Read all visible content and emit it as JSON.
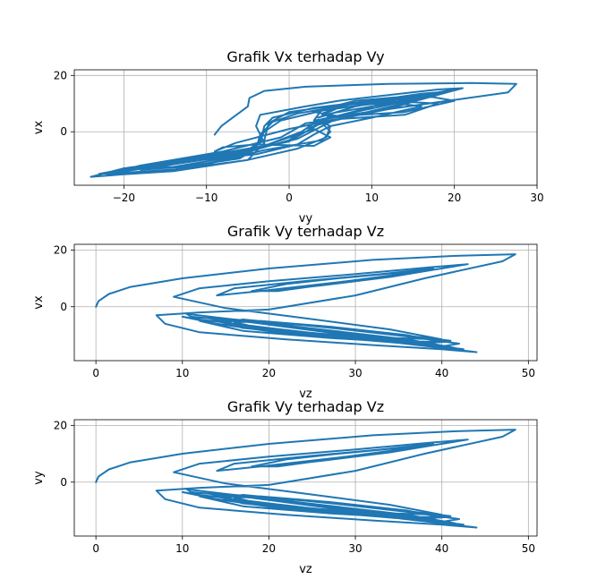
{
  "figure": {
    "background": "#ffffff"
  },
  "chart_data": [
    {
      "type": "line",
      "title": "Grafik Vx terhadap Vy",
      "xlabel": "vy",
      "ylabel": "vx",
      "xlim": [
        -26,
        30
      ],
      "ylim": [
        -19,
        22
      ],
      "xticks": [
        -20,
        -10,
        0,
        10,
        20,
        30
      ],
      "yticks": [
        0,
        20
      ],
      "grid": true,
      "color": "#1f77b4",
      "x": [
        -9.0,
        -8.2,
        -5.0,
        -4.8,
        -3.0,
        2.0,
        12.0,
        22.0,
        27.5,
        26.5,
        12.0,
        0.0,
        -6.5,
        -9.0,
        -8.0,
        -4.0,
        3.0,
        5.0,
        3.0,
        0.0,
        -3.0,
        -10.0,
        -20.0,
        -24.0,
        -15.0,
        -5.0,
        -3.0,
        -4.0,
        -3.5,
        2.0,
        6.0,
        12.0,
        18.0,
        21.0,
        16.0,
        8.0,
        3.0,
        4.0,
        8.0,
        16.0,
        20.0,
        14.0,
        6.0,
        3.0,
        5.0,
        12.0,
        18.0,
        14.0,
        6.0,
        2.0,
        -1.0,
        -8.0,
        -18.0,
        -22.0,
        -12.0,
        -3.0,
        4.0,
        5.0,
        4.0,
        2.0,
        0.0,
        -6.0,
        -16.0,
        -23.0,
        -15.0,
        -6.0,
        -3.5,
        -3.0,
        -2.0,
        3.0,
        10.0,
        16.0,
        18.0,
        12.0,
        5.0,
        3.5,
        8.0,
        14.0,
        17.0,
        12.0,
        6.0,
        4.0,
        6.0,
        12.0,
        16.0,
        10.0,
        5.0,
        3.0,
        1.0,
        -4.0,
        -14.0,
        -21.0,
        -15.0,
        -6.0,
        -3.0,
        -2.5,
        0.0,
        6.0,
        14.0,
        20.0,
        16.0,
        8.0,
        4.0,
        5.0,
        3.0,
        1.0,
        -6.0,
        -17.0,
        -22.0,
        -14.0,
        -5.0,
        1.0,
        4.5,
        5.0,
        3.5,
        1.5,
        -3.0,
        -12.0,
        -19.0,
        -14.0,
        -7.0,
        -4.0,
        -3.0,
        -1.0,
        4.0,
        10.0,
        14.0,
        9.0,
        5.0,
        4.0,
        7.0,
        13.0,
        15.0,
        10.0,
        5.5,
        3.5,
        2.0,
        0.0,
        -5.0,
        -13.0,
        -18.0,
        -13.0,
        -6.0,
        -4.0,
        -3.5,
        -2.0,
        1.0,
        5.0,
        8.0
      ],
      "y": [
        -1.0,
        2.0,
        9.0,
        12.0,
        14.5,
        16.0,
        17.0,
        17.3,
        17.0,
        14.0,
        8.0,
        1.0,
        -4.0,
        -7.0,
        -5.5,
        -4.5,
        -5.0,
        -2.0,
        1.0,
        -2.0,
        -5.0,
        -9.0,
        -13.0,
        -16.0,
        -14.0,
        -10.0,
        -4.0,
        2.0,
        6.0,
        9.0,
        11.0,
        13.0,
        15.0,
        15.5,
        11.5,
        6.0,
        4.0,
        8.0,
        11.0,
        13.0,
        11.0,
        7.0,
        5.5,
        7.0,
        9.0,
        11.0,
        10.0,
        6.0,
        4.5,
        3.0,
        -2.0,
        -7.0,
        -12.0,
        -15.0,
        -13.0,
        -6.5,
        -3.0,
        0.0,
        3.0,
        1.0,
        -3.0,
        -8.0,
        -11.0,
        -15.0,
        -14.0,
        -9.0,
        -4.0,
        2.0,
        5.0,
        8.5,
        11.0,
        13.5,
        14.0,
        10.0,
        6.5,
        5.0,
        9.0,
        12.0,
        12.5,
        8.0,
        5.5,
        6.0,
        8.5,
        10.5,
        9.0,
        5.0,
        2.0,
        -1.0,
        -4.5,
        -8.0,
        -11.0,
        -14.5,
        -12.0,
        -8.0,
        -3.0,
        3.0,
        7.0,
        9.5,
        12.0,
        15.0,
        12.0,
        7.0,
        4.5,
        3.5,
        0.5,
        -2.5,
        -7.5,
        -12.0,
        -15.5,
        -14.0,
        -10.0,
        -6.0,
        -2.0,
        2.0,
        4.0,
        0.0,
        -5.0,
        -9.5,
        -13.0,
        -12.5,
        -9.0,
        -5.0,
        0.0,
        4.0,
        7.5,
        10.0,
        12.5,
        8.0,
        5.0,
        6.5,
        9.5,
        11.5,
        11.0,
        7.0,
        4.0,
        2.5,
        0.0,
        -3.5,
        -6.5,
        -10.5,
        -13.5,
        -12.5,
        -9.5,
        -6.0,
        -1.0,
        3.5,
        6.5,
        8.5,
        10.0
      ]
    },
    {
      "type": "line",
      "title": "Grafik Vy terhadap Vz",
      "xlabel": "vz",
      "ylabel": "vx",
      "xlim": [
        -2.5,
        51
      ],
      "ylim": [
        -19,
        22
      ],
      "xticks": [
        0,
        10,
        20,
        30,
        40,
        50
      ],
      "yticks": [
        0,
        20
      ],
      "grid": true,
      "color": "#1f77b4",
      "x": [
        0.0,
        0.3,
        1.5,
        4.0,
        10.0,
        20.0,
        32.0,
        42.0,
        48.5,
        47.0,
        38.0,
        30.0,
        20.0,
        12.0,
        7.0,
        8.0,
        12.0,
        22.0,
        32.0,
        40.0,
        44.0,
        40.0,
        30.0,
        20.0,
        12.0,
        10.0,
        14.0,
        22.0,
        32.0,
        40.0,
        42.0,
        36.0,
        26.0,
        16.0,
        12.0,
        17.0,
        27.0,
        38.0,
        41.0,
        34.0,
        24.0,
        17.0,
        15.0,
        19.0,
        27.0,
        36.0,
        42.5,
        38.0,
        28.0,
        18.0,
        11.0,
        10.5,
        16.0,
        26.0,
        36.0,
        41.5,
        37.0,
        27.0,
        18.0,
        14.0,
        17.0,
        26.0,
        35.0,
        40.0,
        36.0,
        27.0,
        19.0,
        16.0,
        19.0,
        26.0,
        34.0,
        40.0,
        34.0,
        24.0,
        15.0,
        9.0,
        12.0,
        20.0,
        30.0,
        39.0,
        43.0,
        39.0,
        29.0,
        19.0,
        14.0,
        16.0,
        24.0,
        33.0,
        39.0,
        35.0,
        27.0,
        21.0,
        18.0,
        22.0,
        28.0,
        35.0,
        39.0,
        34.0,
        26.0,
        20.0
      ],
      "y": [
        0.0,
        2.0,
        4.5,
        7.0,
        10.0,
        13.5,
        16.5,
        18.0,
        18.5,
        16.0,
        10.0,
        4.0,
        -1.0,
        -2.0,
        -3.0,
        -6.0,
        -9.0,
        -11.5,
        -13.5,
        -15.0,
        -16.0,
        -14.5,
        -11.0,
        -7.5,
        -4.5,
        -3.5,
        -6.0,
        -9.5,
        -12.0,
        -14.0,
        -13.0,
        -10.5,
        -7.0,
        -4.5,
        -5.0,
        -8.5,
        -11.0,
        -13.0,
        -12.0,
        -9.5,
        -6.5,
        -4.5,
        -5.5,
        -8.0,
        -10.5,
        -12.5,
        -15.0,
        -13.5,
        -9.5,
        -5.5,
        -3.5,
        -2.5,
        -4.5,
        -8.0,
        -11.5,
        -14.5,
        -12.5,
        -8.5,
        -5.0,
        -5.0,
        -7.5,
        -10.0,
        -12.0,
        -12.5,
        -10.0,
        -7.0,
        -5.0,
        -5.5,
        -7.5,
        -9.5,
        -11.0,
        -11.5,
        -8.0,
        -4.0,
        -0.5,
        3.5,
        6.5,
        9.0,
        11.5,
        14.0,
        15.0,
        13.0,
        9.0,
        5.5,
        4.0,
        6.5,
        9.0,
        11.5,
        13.5,
        11.0,
        8.0,
        5.5,
        5.5,
        8.0,
        10.0,
        12.0,
        13.0,
        10.5,
        7.5,
        5.5
      ]
    },
    {
      "type": "line",
      "title": "Grafik Vy terhadap Vz",
      "xlabel": "vz",
      "ylabel": "vy",
      "xlim": [
        -2.5,
        51
      ],
      "ylim": [
        -19,
        22
      ],
      "xticks": [
        0,
        10,
        20,
        30,
        40,
        50
      ],
      "yticks": [
        0,
        20
      ],
      "grid": true,
      "color": "#1f77b4",
      "x": [
        0.0,
        0.3,
        1.5,
        4.0,
        10.0,
        20.0,
        32.0,
        42.0,
        48.5,
        47.0,
        38.0,
        30.0,
        20.0,
        12.0,
        7.0,
        8.0,
        12.0,
        22.0,
        32.0,
        40.0,
        44.0,
        40.0,
        30.0,
        20.0,
        12.0,
        10.0,
        14.0,
        22.0,
        32.0,
        40.0,
        42.0,
        36.0,
        26.0,
        16.0,
        12.0,
        17.0,
        27.0,
        38.0,
        41.0,
        34.0,
        24.0,
        17.0,
        15.0,
        19.0,
        27.0,
        36.0,
        42.5,
        38.0,
        28.0,
        18.0,
        11.0,
        10.5,
        16.0,
        26.0,
        36.0,
        41.5,
        37.0,
        27.0,
        18.0,
        14.0,
        17.0,
        26.0,
        35.0,
        40.0,
        36.0,
        27.0,
        19.0,
        16.0,
        19.0,
        26.0,
        34.0,
        40.0,
        34.0,
        24.0,
        15.0,
        9.0,
        12.0,
        20.0,
        30.0,
        39.0,
        43.0,
        39.0,
        29.0,
        19.0,
        14.0,
        16.0,
        24.0,
        33.0,
        39.0,
        35.0,
        27.0,
        21.0,
        18.0,
        22.0,
        28.0,
        35.0,
        39.0,
        34.0,
        26.0,
        20.0
      ],
      "y": [
        0.0,
        2.0,
        4.5,
        7.0,
        10.0,
        13.5,
        16.5,
        18.0,
        18.5,
        16.0,
        10.0,
        4.0,
        -1.0,
        -2.0,
        -3.0,
        -6.0,
        -9.0,
        -11.5,
        -13.5,
        -15.0,
        -16.0,
        -14.5,
        -11.0,
        -7.5,
        -4.5,
        -3.5,
        -6.0,
        -9.5,
        -12.0,
        -14.0,
        -13.0,
        -10.5,
        -7.0,
        -4.5,
        -5.0,
        -8.5,
        -11.0,
        -13.0,
        -12.0,
        -9.5,
        -6.5,
        -4.5,
        -5.5,
        -8.0,
        -10.5,
        -12.5,
        -15.0,
        -13.5,
        -9.5,
        -5.5,
        -3.5,
        -2.5,
        -4.5,
        -8.0,
        -11.5,
        -14.5,
        -12.5,
        -8.5,
        -5.0,
        -5.0,
        -7.5,
        -10.0,
        -12.0,
        -12.5,
        -10.0,
        -7.0,
        -5.0,
        -5.5,
        -7.5,
        -9.5,
        -11.0,
        -11.5,
        -8.0,
        -4.0,
        -0.5,
        3.5,
        6.5,
        9.0,
        11.5,
        14.0,
        15.0,
        13.0,
        9.0,
        5.5,
        4.0,
        6.5,
        9.0,
        11.5,
        13.5,
        11.0,
        8.0,
        5.5,
        5.5,
        8.0,
        10.0,
        12.0,
        13.0,
        10.5,
        7.5,
        5.5
      ]
    }
  ]
}
